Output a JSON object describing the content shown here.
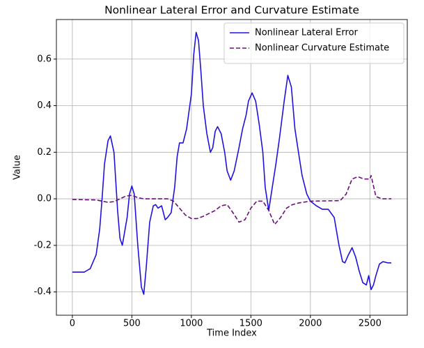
{
  "chart_data": {
    "type": "line",
    "title": "Nonlinear Lateral Error and Curvature Estimate",
    "xlabel": "Time Index",
    "ylabel": "Value",
    "xlim": [
      -134,
      2814
    ],
    "ylim": [
      -0.5,
      0.77
    ],
    "xticks": [
      0,
      500,
      1000,
      1500,
      2000,
      2500
    ],
    "yticks": [
      -0.4,
      -0.2,
      {
        "value": 0,
        "label": "0.0"
      },
      0.2,
      0.4,
      0.6
    ],
    "grid": true,
    "legend": "upper right",
    "series": [
      {
        "name": "Nonlinear Lateral Error",
        "color": "#1f10e0",
        "dash": "solid",
        "x": [
          0,
          100,
          150,
          200,
          230,
          250,
          270,
          300,
          320,
          350,
          380,
          400,
          420,
          460,
          480,
          500,
          520,
          550,
          580,
          600,
          620,
          650,
          680,
          700,
          720,
          750,
          780,
          800,
          830,
          860,
          880,
          900,
          930,
          960,
          1000,
          1020,
          1040,
          1060,
          1080,
          1100,
          1130,
          1160,
          1180,
          1200,
          1220,
          1250,
          1280,
          1300,
          1330,
          1360,
          1400,
          1430,
          1460,
          1480,
          1510,
          1540,
          1570,
          1600,
          1620,
          1650,
          1680,
          1710,
          1740,
          1780,
          1810,
          1840,
          1870,
          1900,
          1930,
          1970,
          2000,
          2050,
          2100,
          2150,
          2200,
          2240,
          2270,
          2290,
          2320,
          2350,
          2380,
          2410,
          2440,
          2470,
          2490,
          2510,
          2530,
          2550,
          2580,
          2610,
          2650,
          2680
        ],
        "values": [
          -0.315,
          -0.315,
          -0.3,
          -0.24,
          -0.13,
          0.0,
          0.15,
          0.25,
          0.27,
          0.2,
          -0.05,
          -0.17,
          -0.2,
          -0.08,
          0.02,
          0.055,
          0.02,
          -0.2,
          -0.38,
          -0.41,
          -0.3,
          -0.1,
          -0.03,
          -0.025,
          -0.04,
          -0.03,
          -0.09,
          -0.08,
          -0.06,
          0.05,
          0.18,
          0.24,
          0.24,
          0.3,
          0.45,
          0.62,
          0.715,
          0.68,
          0.55,
          0.4,
          0.28,
          0.2,
          0.22,
          0.29,
          0.31,
          0.28,
          0.2,
          0.12,
          0.08,
          0.12,
          0.22,
          0.3,
          0.36,
          0.42,
          0.455,
          0.42,
          0.32,
          0.2,
          0.05,
          -0.05,
          0.05,
          0.15,
          0.26,
          0.42,
          0.53,
          0.48,
          0.3,
          0.2,
          0.1,
          0.02,
          -0.01,
          -0.03,
          -0.045,
          -0.045,
          -0.08,
          -0.2,
          -0.27,
          -0.275,
          -0.24,
          -0.21,
          -0.25,
          -0.31,
          -0.36,
          -0.37,
          -0.33,
          -0.39,
          -0.37,
          -0.33,
          -0.28,
          -0.27,
          -0.275,
          -0.275
        ]
      },
      {
        "name": "Nonlinear Curvature Estimate",
        "color": "#6a0f7a",
        "dash": "dashed",
        "x": [
          0,
          200,
          300,
          350,
          400,
          450,
          500,
          550,
          600,
          800,
          850,
          900,
          950,
          1000,
          1050,
          1100,
          1200,
          1250,
          1300,
          1350,
          1400,
          1450,
          1500,
          1550,
          1600,
          1650,
          1700,
          1750,
          1800,
          1850,
          1900,
          2000,
          2250,
          2300,
          2350,
          2400,
          2450,
          2500,
          2510,
          2550,
          2600,
          2680
        ],
        "values": [
          -0.003,
          -0.005,
          -0.015,
          -0.012,
          0.0,
          0.012,
          0.015,
          0.005,
          0.0,
          0.0,
          -0.01,
          -0.04,
          -0.07,
          -0.085,
          -0.085,
          -0.075,
          -0.05,
          -0.03,
          -0.025,
          -0.06,
          -0.1,
          -0.09,
          -0.04,
          -0.01,
          -0.01,
          -0.05,
          -0.11,
          -0.08,
          -0.04,
          -0.025,
          -0.018,
          -0.01,
          -0.008,
          0.02,
          0.085,
          0.095,
          0.085,
          0.085,
          0.1,
          0.01,
          0.0,
          0.0
        ]
      }
    ]
  }
}
